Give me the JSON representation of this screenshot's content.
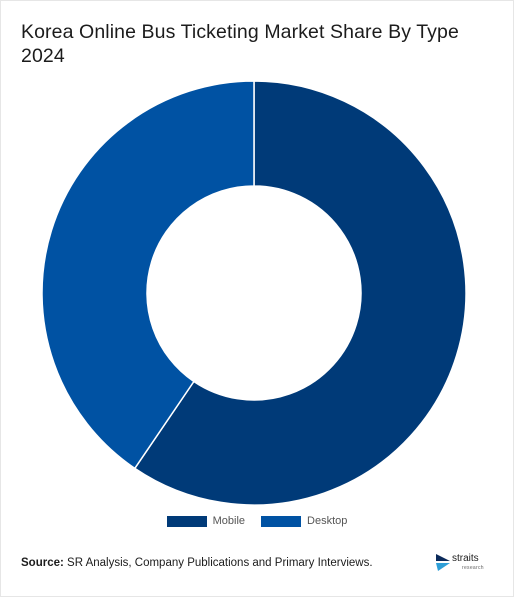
{
  "chart_data": {
    "type": "pie",
    "title": "Korea Online Bus Ticketing Market Share By Type 2024",
    "categories": [
      "Mobile",
      "Desktop"
    ],
    "values": [
      59.5,
      40.5
    ],
    "colors": [
      "#003a78",
      "#0052a3"
    ],
    "legend_position": "bottom-center"
  },
  "source": {
    "label": "Source:",
    "text": "SR Analysis, Company Publications and Primary Interviews."
  },
  "logo": {
    "word": "straits",
    "sub": "research"
  }
}
